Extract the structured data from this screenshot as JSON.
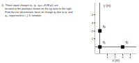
{
  "chart_data": {
    "type": "scatter",
    "annotations": [
      "1)  Three equal charges q₁, q₂, q₃= +8.38 µC are",
      "     located at the positions shown on the xy axes to the right.",
      "     Find the net electrostatic force on charge q₃ due to q₁ and",
      "     q₂, expressed in ī, ĵ, k̂, notation."
    ],
    "x": [
      0.0,
      3.0,
      0.0
    ],
    "values": [
      0.0,
      0.0,
      2.0
    ],
    "labels": [
      "q₁",
      "q₂",
      "q₃"
    ],
    "xlim": [
      -0.6,
      4.8
    ],
    "ylim": [
      -0.8,
      5.5
    ],
    "xticks": [
      1,
      2,
      3,
      4
    ],
    "yticks": [
      1,
      2,
      3,
      4
    ],
    "xlabel": "x (m)",
    "ylabel": "y (m)",
    "color": "#111111",
    "marker": "square",
    "grid": false
  }
}
